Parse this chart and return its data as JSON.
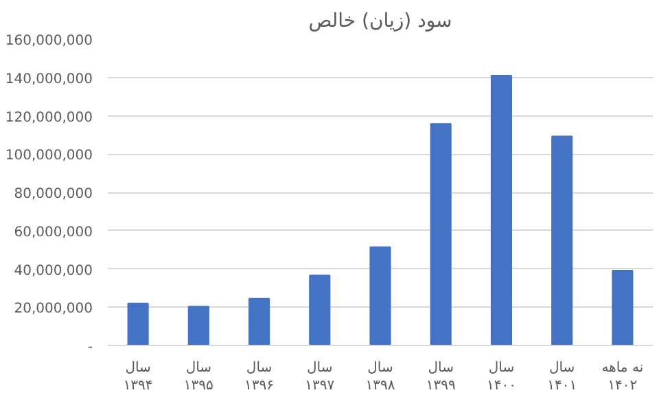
{
  "chart_data": {
    "type": "bar",
    "title": "سود (زیان) خالص",
    "categories": [
      "سال\n۱۳۹۴",
      "سال\n۱۳۹۵",
      "سال\n۱۳۹۶",
      "سال\n۱۳۹۷",
      "سال\n۱۳۹۸",
      "سال\n۱۳۹۹",
      "سال\n۱۴۰۰",
      "سال\n۱۴۰۱",
      "نه ماهه\n۱۴۰۲"
    ],
    "values": [
      22000000,
      20400000,
      24500000,
      36700000,
      51400000,
      115800000,
      141000000,
      109200000,
      39100000
    ],
    "color": "#4472c4",
    "ylim": [
      0,
      160000000
    ],
    "yticks": [
      {
        "value": 0,
        "label": "-"
      },
      {
        "value": 20000000,
        "label": "20,000,000"
      },
      {
        "value": 40000000,
        "label": "40,000,000"
      },
      {
        "value": 60000000,
        "label": "60,000,000"
      },
      {
        "value": 80000000,
        "label": "80,000,000"
      },
      {
        "value": 100000000,
        "label": "100,000,000"
      },
      {
        "value": 120000000,
        "label": "120,000,000"
      },
      {
        "value": 140000000,
        "label": "140,000,000"
      },
      {
        "value": 160000000,
        "label": "160,000,000"
      }
    ],
    "grid": "y"
  }
}
